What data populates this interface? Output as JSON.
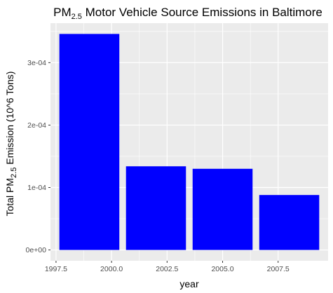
{
  "chart_data": {
    "type": "bar",
    "title": {
      "prefix": "PM",
      "subscript": "2.5",
      "suffix": " Motor Vehicle Source Emissions in Baltimore"
    },
    "xlabel": "year",
    "ylabel": {
      "prefix": "Total PM",
      "subscript": "2.5",
      "suffix": " Emission (10^6 Tons)"
    },
    "x": [
      1999,
      2002,
      2005,
      2008
    ],
    "values": [
      0.000346,
      0.000134,
      0.00013,
      8.8e-05
    ],
    "bar_width_years": 2.7,
    "xlim": [
      1997.25,
      2009.75
    ],
    "ylim": [
      -1.73e-05,
      0.0003633
    ],
    "x_ticks": [
      1997.5,
      2000.0,
      2002.5,
      2005.0,
      2007.5
    ],
    "x_tick_labels": [
      "1997.5",
      "2000.0",
      "2002.5",
      "2005.0",
      "2007.5"
    ],
    "y_ticks": [
      0,
      0.0001,
      0.0002,
      0.0003
    ],
    "y_tick_labels": [
      "0e+00",
      "1e-04",
      "2e-04",
      "3e-04"
    ],
    "bar_color": "#0000ff",
    "panel_background": "#ebebeb",
    "grid": true,
    "legend": "none"
  }
}
